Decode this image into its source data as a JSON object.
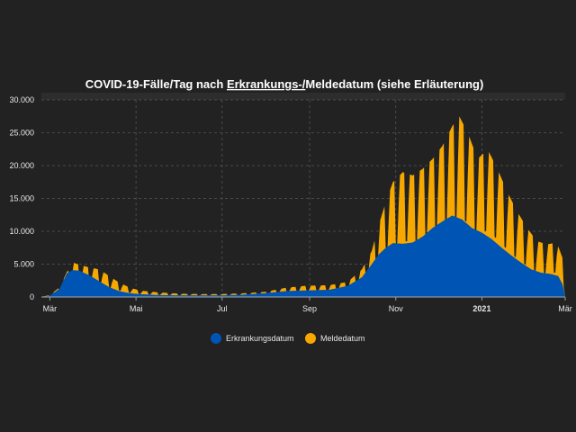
{
  "chart_data": {
    "type": "area",
    "title_parts": [
      "COVID-19-Fälle/Tag nach ",
      "Erkrankungs-/",
      "Meldedatum (siehe Erläuterung)"
    ],
    "x_range": [
      "2020-02-24",
      "2021-03-01"
    ],
    "ylim": [
      0,
      30000
    ],
    "y_ticks": [
      0,
      5000,
      10000,
      15000,
      20000,
      25000,
      30000
    ],
    "y_tick_labels": [
      "0",
      "5.000",
      "10.000",
      "15.000",
      "20.000",
      "25.000",
      "30.000"
    ],
    "x_ticks": [
      {
        "date": "2020-03-01",
        "label": "Mär",
        "bold": false
      },
      {
        "date": "2020-05-01",
        "label": "Mai",
        "bold": false
      },
      {
        "date": "2020-07-01",
        "label": "Jul",
        "bold": false
      },
      {
        "date": "2020-09-01",
        "label": "Sep",
        "bold": false
      },
      {
        "date": "2020-11-01",
        "label": "Nov",
        "bold": false
      },
      {
        "date": "2021-01-01",
        "label": "2021",
        "bold": true
      },
      {
        "date": "2021-03-01",
        "label": "Mär",
        "bold": false
      }
    ],
    "grid": true,
    "legend_position": "bottom",
    "series": [
      {
        "name": "Meldedatum",
        "color": "#f6a800",
        "weekly_oscillation": true,
        "points": [
          [
            "2020-02-24",
            0
          ],
          [
            "2020-03-01",
            300
          ],
          [
            "2020-03-08",
            1500
          ],
          [
            "2020-03-13",
            3800
          ],
          [
            "2020-03-18",
            5200
          ],
          [
            "2020-03-22",
            4900
          ],
          [
            "2020-03-29",
            4500
          ],
          [
            "2020-04-05",
            4200
          ],
          [
            "2020-04-12",
            3200
          ],
          [
            "2020-04-19",
            2200
          ],
          [
            "2020-04-26",
            1500
          ],
          [
            "2020-05-03",
            1000
          ],
          [
            "2020-05-17",
            700
          ],
          [
            "2020-06-01",
            500
          ],
          [
            "2020-06-15",
            450
          ],
          [
            "2020-07-01",
            450
          ],
          [
            "2020-07-15",
            550
          ],
          [
            "2020-08-01",
            800
          ],
          [
            "2020-08-15",
            1400
          ],
          [
            "2020-08-29",
            1700
          ],
          [
            "2020-09-15",
            1800
          ],
          [
            "2020-09-28",
            2300
          ],
          [
            "2020-10-08",
            4200
          ],
          [
            "2020-10-15",
            7000
          ],
          [
            "2020-10-20",
            11000
          ],
          [
            "2020-10-25",
            14500
          ],
          [
            "2020-10-30",
            17500
          ],
          [
            "2020-11-06",
            19000
          ],
          [
            "2020-11-13",
            18500
          ],
          [
            "2020-11-20",
            19500
          ],
          [
            "2020-11-27",
            21000
          ],
          [
            "2020-12-04",
            23000
          ],
          [
            "2020-12-11",
            26000
          ],
          [
            "2020-12-16",
            27500
          ],
          [
            "2020-12-22",
            25000
          ],
          [
            "2020-12-29",
            21000
          ],
          [
            "2021-01-05",
            22500
          ],
          [
            "2021-01-12",
            19500
          ],
          [
            "2021-01-19",
            16000
          ],
          [
            "2021-01-26",
            13000
          ],
          [
            "2021-02-02",
            10500
          ],
          [
            "2021-02-09",
            8500
          ],
          [
            "2021-02-16",
            8000
          ],
          [
            "2021-02-23",
            8300
          ],
          [
            "2021-02-27",
            6000
          ],
          [
            "2021-03-01",
            200
          ]
        ]
      },
      {
        "name": "Erkrankungsdatum",
        "color": "#0054b4",
        "weekly_oscillation": false,
        "points": [
          [
            "2020-02-24",
            0
          ],
          [
            "2020-03-01",
            200
          ],
          [
            "2020-03-08",
            1300
          ],
          [
            "2020-03-13",
            3600
          ],
          [
            "2020-03-17",
            4100
          ],
          [
            "2020-03-22",
            4000
          ],
          [
            "2020-03-29",
            3300
          ],
          [
            "2020-04-05",
            2400
          ],
          [
            "2020-04-12",
            1500
          ],
          [
            "2020-04-19",
            900
          ],
          [
            "2020-04-26",
            600
          ],
          [
            "2020-05-03",
            450
          ],
          [
            "2020-05-17",
            300
          ],
          [
            "2020-06-01",
            250
          ],
          [
            "2020-06-15",
            250
          ],
          [
            "2020-07-01",
            250
          ],
          [
            "2020-07-15",
            350
          ],
          [
            "2020-08-01",
            600
          ],
          [
            "2020-08-15",
            900
          ],
          [
            "2020-08-29",
            1000
          ],
          [
            "2020-09-15",
            1100
          ],
          [
            "2020-09-28",
            1700
          ],
          [
            "2020-10-08",
            3000
          ],
          [
            "2020-10-15",
            5000
          ],
          [
            "2020-10-20",
            6500
          ],
          [
            "2020-10-25",
            7500
          ],
          [
            "2020-10-30",
            8200
          ],
          [
            "2020-11-06",
            8100
          ],
          [
            "2020-11-13",
            8300
          ],
          [
            "2020-11-20",
            9200
          ],
          [
            "2020-11-27",
            10500
          ],
          [
            "2020-12-04",
            11500
          ],
          [
            "2020-12-11",
            12400
          ],
          [
            "2020-12-18",
            11800
          ],
          [
            "2020-12-25",
            10500
          ],
          [
            "2021-01-01",
            9800
          ],
          [
            "2021-01-08",
            8800
          ],
          [
            "2021-01-15",
            7500
          ],
          [
            "2021-01-22",
            6300
          ],
          [
            "2021-01-29",
            5200
          ],
          [
            "2021-02-05",
            4200
          ],
          [
            "2021-02-12",
            3700
          ],
          [
            "2021-02-19",
            3500
          ],
          [
            "2021-02-24",
            3200
          ],
          [
            "2021-02-27",
            2000
          ],
          [
            "2021-03-01",
            50
          ]
        ]
      }
    ],
    "legend": [
      {
        "label": "Erkrankungsdatum",
        "color": "#0054b4"
      },
      {
        "label": "Meldedatum",
        "color": "#f6a800"
      }
    ]
  }
}
